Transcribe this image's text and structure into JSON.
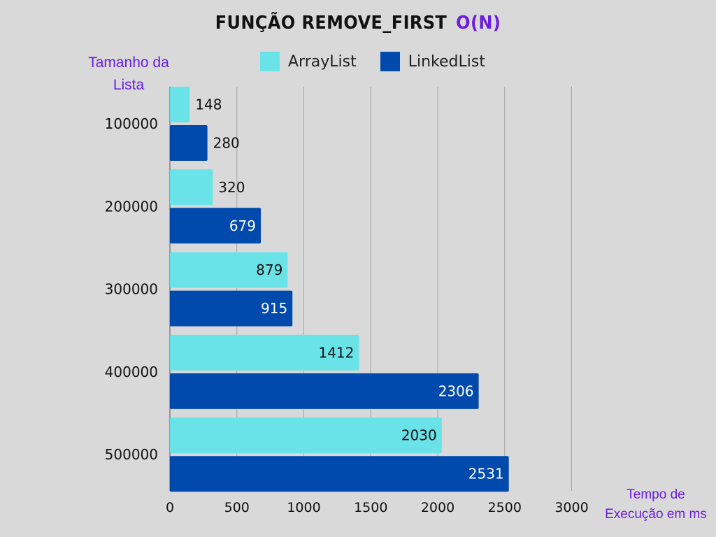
{
  "title": {
    "main": "FUNÇÃO REMOVE_FIRST",
    "complexity": "O(N)"
  },
  "colors": {
    "background": "#d9d9d9",
    "array_list": "#6ae3e8",
    "linked_list": "#0049ad",
    "axis_title": "#6a1de0",
    "gridline": "#a6a6a6"
  },
  "chart_data": {
    "type": "bar",
    "orientation": "horizontal",
    "title": "FUNÇÃO REMOVE_FIRST O(N)",
    "ylabel": "Tamanho da Lista",
    "xlabel": "Tempo de Execução em ms",
    "categories": [
      "100000",
      "200000",
      "300000",
      "400000",
      "500000"
    ],
    "series": [
      {
        "name": "ArrayList",
        "values": [
          148,
          320,
          879,
          1412,
          2030
        ]
      },
      {
        "name": "LinkedList",
        "values": [
          280,
          679,
          915,
          2306,
          2531
        ]
      }
    ],
    "xlim": [
      0,
      3000
    ],
    "xticks": [
      "0",
      "500",
      "1000",
      "1500",
      "2000",
      "2500",
      "3000"
    ],
    "grid": true,
    "legend_position": "top"
  }
}
